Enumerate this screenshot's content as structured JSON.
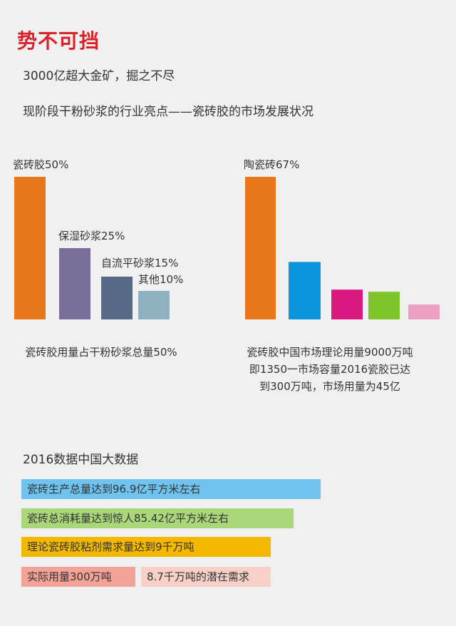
{
  "header": {
    "title": "势不可挡",
    "subtitle": "3000亿超大金矿，掘之不尽",
    "headline": "现阶段干粉砂浆的行业亮点——瓷砖胶的市场发展状况"
  },
  "chart_data": [
    {
      "type": "bar",
      "title": "",
      "xlabel": "",
      "ylabel": "",
      "categories": [
        "瓷砖胶",
        "保湿砂浆",
        "自流平砂浆",
        "其他"
      ],
      "values": [
        50,
        25,
        15,
        10
      ],
      "labels": [
        "瓷砖胶50%",
        "保湿砂浆25%",
        "自流平砂浆15%",
        "其他10%"
      ],
      "colors": [
        "#e8771c",
        "#7a6f99",
        "#566a88",
        "#8fb0bf"
      ],
      "ylim": [
        0,
        50
      ],
      "grid": false,
      "caption": "瓷砖胶用量占干粉砂浆总量50%"
    },
    {
      "type": "bar",
      "title": "",
      "xlabel": "",
      "ylabel": "",
      "categories": [
        "陶瓷砖",
        "",
        "",
        "",
        ""
      ],
      "values": [
        67,
        27,
        14,
        13,
        7
      ],
      "labels": [
        "陶瓷砖67%",
        "",
        "",
        "",
        ""
      ],
      "colors": [
        "#e8771c",
        "#0a95dd",
        "#d91880",
        "#7fc42b",
        "#eda0c3"
      ],
      "ylim": [
        0,
        67
      ],
      "grid": false,
      "caption_lines": [
        "瓷砖胶中国市场理论用量9000万吨",
        "即1350一市场容量2016瓷胶已达",
        "到300万吨，市场用量为45亿"
      ]
    },
    {
      "type": "bar",
      "orientation": "horizontal",
      "title": "2016数据中国大数据",
      "items": [
        {
          "label": "瓷砖生产总量达到96.9亿平方米左右",
          "value": 96.9,
          "color": "#6fc3ee"
        },
        {
          "label": "瓷砖总消耗量达到惊人85.42亿平方米左右",
          "value": 85.42,
          "color": "#a9d77a"
        },
        {
          "label": "理论瓷砖胶粘剂需求量达到9千万吨",
          "value": 9000,
          "color": "#f5b800"
        },
        {
          "label": "实际用量300万吨",
          "value": 300,
          "color": "#f2a297"
        },
        {
          "label": "8.7千万吨的潜在需求",
          "value": 8700,
          "color": "#f7d0c8"
        }
      ]
    }
  ]
}
